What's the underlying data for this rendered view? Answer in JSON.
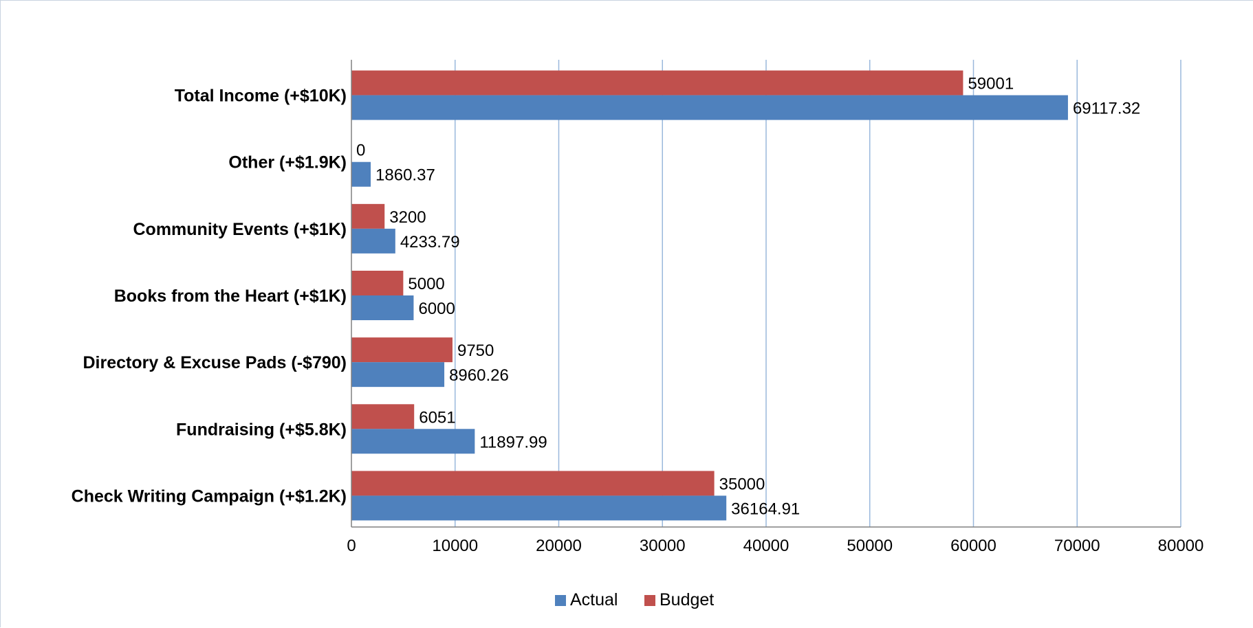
{
  "chart_data": {
    "type": "bar",
    "orientation": "horizontal",
    "categories": [
      "Total Income (+$10K)",
      "Other (+$1.9K)",
      "Community Events (+$1K)",
      "Books from the Heart (+$1K)",
      "Directory & Excuse Pads  (-$790)",
      "Fundraising (+$5.8K)",
      "Check Writing Campaign (+$1.2K)"
    ],
    "series": [
      {
        "name": "Actual",
        "color": "#4f81bd",
        "values": [
          69117.32,
          1860.37,
          4233.79,
          6000,
          8960.26,
          11897.99,
          36164.91
        ],
        "labels": [
          "69117.32",
          "1860.37",
          "4233.79",
          "6000",
          "8960.26",
          "11897.99",
          "36164.91"
        ]
      },
      {
        "name": "Budget",
        "color": "#c0504d",
        "values": [
          59001,
          0,
          3200,
          5000,
          9750,
          6051,
          35000
        ],
        "labels": [
          "59001",
          "0",
          "3200",
          "5000",
          "9750",
          "6051",
          "35000"
        ]
      }
    ],
    "xlim": [
      0,
      80000
    ],
    "xticks": [
      "0",
      "10000",
      "20000",
      "30000",
      "40000",
      "50000",
      "60000",
      "70000",
      "80000"
    ],
    "grid": "vertical",
    "gridline_color": "#9ab8dc",
    "legend_position": "bottom"
  }
}
